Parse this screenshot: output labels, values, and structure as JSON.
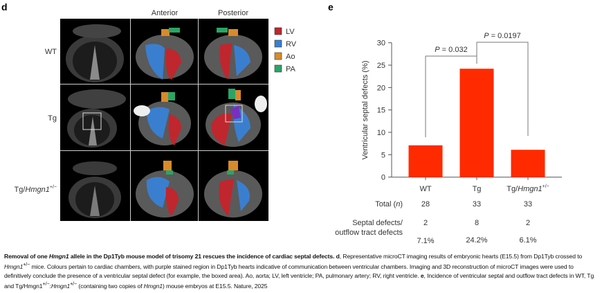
{
  "panel_d": {
    "letter": "d",
    "column_headers": [
      "Anterior",
      "Posterior"
    ],
    "row_labels": [
      "WT",
      "Tg",
      "Tg/",
      "Hmgn1",
      "+/−"
    ],
    "legend": [
      {
        "label": "LV",
        "color": "#c0262d"
      },
      {
        "label": "RV",
        "color": "#3a7fcf"
      },
      {
        "label": "Ao",
        "color": "#d98a2b"
      },
      {
        "label": "PA",
        "color": "#2aa566"
      }
    ]
  },
  "panel_e": {
    "letter": "e",
    "row_headers": {
      "total": "Total (",
      "total_n": "n",
      "total_close": ")",
      "defects_line1": "Septal defects/",
      "defects_line2": "outflow tract defects"
    },
    "categories_display": [
      "WT",
      "Tg",
      "Tg/",
      "Hmgn1",
      "+/−"
    ],
    "totals": [
      "28",
      "33",
      "33"
    ],
    "defects": [
      "2",
      "8",
      "2"
    ],
    "percent_labels": [
      "7.1%",
      "24.2%",
      "6.1%"
    ],
    "p_values": [
      {
        "prefix": "P",
        "text": " = 0.032"
      },
      {
        "prefix": "P",
        "text": " = 0.0197"
      }
    ]
  },
  "chart_data": {
    "type": "bar",
    "categories": [
      "WT",
      "Tg",
      "Tg/Hmgn1+/−"
    ],
    "values": [
      7.1,
      24.2,
      6.1
    ],
    "ylabel": "Ventricular septal defects (%)",
    "xlabel": "",
    "ylim": [
      0,
      30
    ],
    "yticks": [
      0,
      5,
      10,
      15,
      20,
      25,
      30
    ],
    "bar_color": "#ff2a00",
    "grid": false,
    "comparisons": [
      {
        "groups": [
          "WT",
          "Tg"
        ],
        "p": "P = 0.032"
      },
      {
        "groups": [
          "Tg",
          "Tg/Hmgn1+/−"
        ],
        "p": "P = 0.0197"
      }
    ]
  },
  "caption": {
    "title": "Removal of one Hmgn1 allele in the Dp1Tyb mouse model of trisomy 21 rescues the incidence of cardiac septal defects.",
    "t1": "Removal of one ",
    "t1i": "Hmgn1",
    "t1b": " allele in the Dp1Tyb mouse model of trisomy 21 rescues the incidence of cardiac septal defects.",
    "d_letter": "d",
    "d1": ", Representative microCT imaging results of embryonic hearts (E15.5) from Dp1Tyb crossed to ",
    "d1i": "Hmgn1",
    "d1s": "+/−",
    "d2": " mice. Colours pertain to cardiac chambers, with purple stained region in Dp1Tyb hearts indicative of communication between ventricular chambers. Imaging and 3D reconstruction of microCT images were used to definitively conclude the presence of a ventricular septal defect (for example, the boxed area). Ao, aorta; LV, left ventricle; PA, pulmonary artery; RV, right ventricle.",
    "e_letter": "e",
    "e1": ", Incidence of ventricular septal and outflow tract defects in WT, Tg and Tg/Hmgn1",
    "e1s": "+/−",
    "e2": ":",
    "e2i": "Hmgn1",
    "e2s": "+/−",
    "e3": " (containing two copies of ",
    "e3i": "Hmgn1",
    "e4": ") mouse embryos at E15.5. Nature, 2025"
  }
}
